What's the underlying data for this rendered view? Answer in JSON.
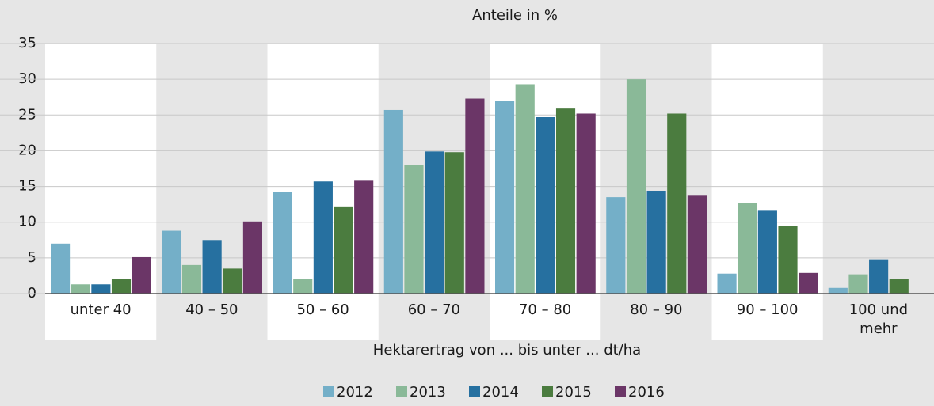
{
  "chart_data": {
    "type": "bar",
    "title": "Anteile in %",
    "x_label": "Hektarertrag von ... bis unter ... dt/ha",
    "categories": [
      "unter 40",
      "40 – 50",
      "50 – 60",
      "60 – 70",
      "70 – 80",
      "80 – 90",
      "90 – 100",
      "100 und mehr"
    ],
    "series": [
      {
        "name": "2012",
        "color": "#74afc8",
        "values": [
          7.0,
          8.8,
          14.2,
          25.7,
          27.0,
          13.5,
          2.8,
          0.8
        ]
      },
      {
        "name": "2013",
        "color": "#8ab998",
        "values": [
          1.3,
          4.0,
          2.0,
          18.0,
          29.3,
          30.0,
          12.7,
          2.7
        ]
      },
      {
        "name": "2014",
        "color": "#2670a0",
        "values": [
          1.3,
          7.5,
          15.7,
          19.9,
          24.7,
          14.4,
          11.7,
          4.8
        ]
      },
      {
        "name": "2015",
        "color": "#4b7c3f",
        "values": [
          2.1,
          3.5,
          12.2,
          19.8,
          25.9,
          25.2,
          9.5,
          2.1
        ]
      },
      {
        "name": "2016",
        "color": "#6b3667",
        "values": [
          5.1,
          10.1,
          15.8,
          27.3,
          25.2,
          13.7,
          2.9,
          null
        ]
      }
    ],
    "ylim": [
      0,
      35
    ],
    "yticks": [
      0,
      5,
      10,
      15,
      20,
      25,
      30,
      35
    ],
    "grid": true,
    "legend": "bottom"
  }
}
